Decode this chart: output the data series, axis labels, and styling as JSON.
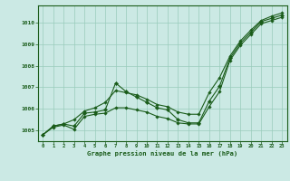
{
  "xlabel": "Graphe pression niveau de la mer (hPa)",
  "xlim": [
    -0.5,
    23.5
  ],
  "ylim": [
    1004.5,
    1010.8
  ],
  "yticks": [
    1005,
    1006,
    1007,
    1008,
    1009,
    1010
  ],
  "xticks": [
    0,
    1,
    2,
    3,
    4,
    5,
    6,
    7,
    8,
    9,
    10,
    11,
    12,
    13,
    14,
    15,
    16,
    17,
    18,
    19,
    20,
    21,
    22,
    23
  ],
  "bg_color": "#cbe9e4",
  "grid_color": "#99ccbb",
  "line_color": "#1a5c1a",
  "series": {
    "main": [
      1004.8,
      1005.2,
      1005.3,
      1005.2,
      1005.8,
      1005.85,
      1005.95,
      1007.2,
      1006.8,
      1006.55,
      1006.3,
      1006.05,
      1005.95,
      1005.5,
      1005.35,
      1005.35,
      1006.35,
      1007.05,
      1008.35,
      1009.05,
      1009.55,
      1010.05,
      1010.2,
      1010.35
    ],
    "upper": [
      1004.8,
      1005.2,
      1005.3,
      1005.5,
      1005.9,
      1006.05,
      1006.3,
      1006.85,
      1006.75,
      1006.65,
      1006.45,
      1006.2,
      1006.1,
      1005.85,
      1005.75,
      1005.75,
      1006.75,
      1007.45,
      1008.45,
      1009.15,
      1009.65,
      1010.1,
      1010.3,
      1010.45
    ],
    "lower": [
      1004.8,
      1005.15,
      1005.25,
      1005.05,
      1005.65,
      1005.75,
      1005.8,
      1006.05,
      1006.05,
      1005.95,
      1005.85,
      1005.65,
      1005.55,
      1005.35,
      1005.3,
      1005.3,
      1006.1,
      1006.8,
      1008.25,
      1008.95,
      1009.45,
      1009.95,
      1010.1,
      1010.25
    ]
  }
}
